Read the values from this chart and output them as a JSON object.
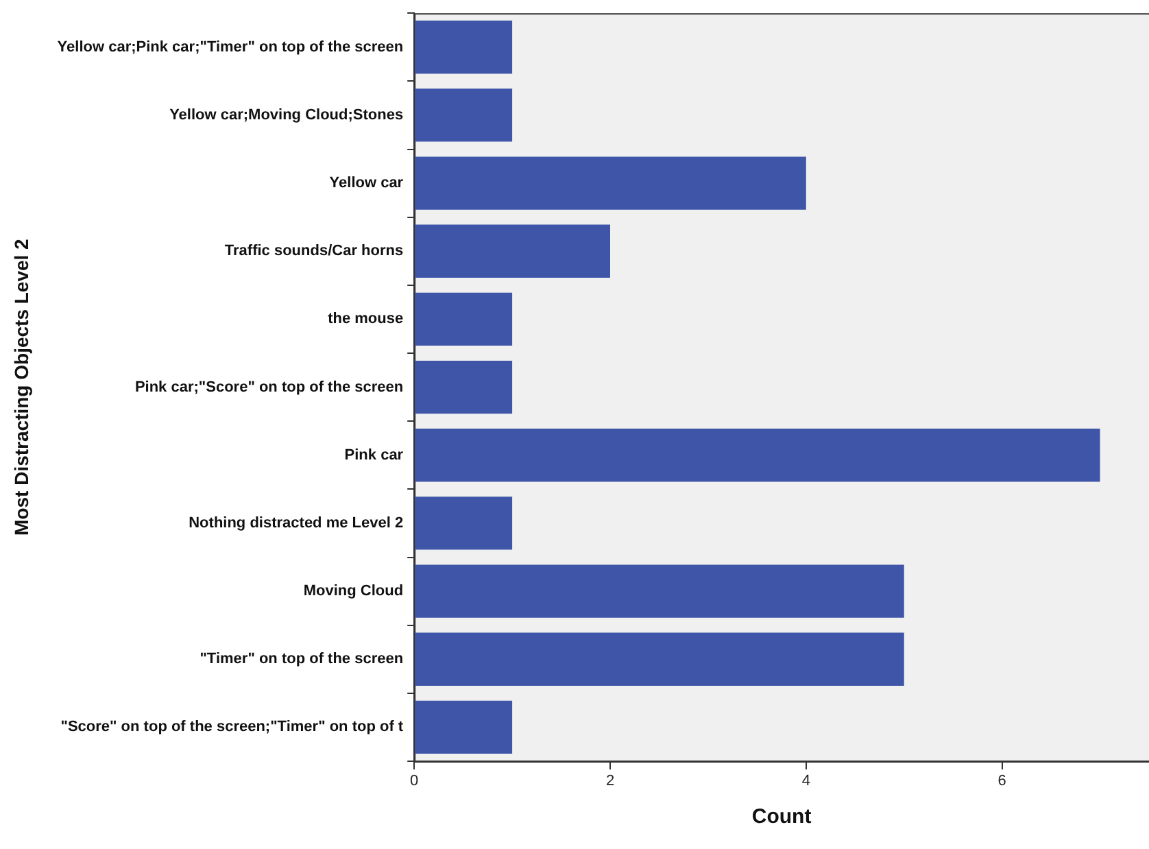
{
  "chart_data": {
    "type": "bar",
    "orientation": "horizontal",
    "xlabel": "Count",
    "ylabel": "Most Distracting Objects Level 2",
    "categories": [
      "Yellow car;Pink car;\"Timer\" on top of the screen",
      "Yellow car;Moving Cloud;Stones",
      "Yellow car",
      "Traffic sounds/Car horns",
      "the mouse",
      "Pink car;\"Score\" on top of the screen",
      "Pink car",
      "Nothing distracted me Level 2",
      "Moving Cloud",
      "\"Timer\" on top of the screen",
      "\"Score\" on top of the screen;\"Timer\" on top of t"
    ],
    "values": [
      1,
      1,
      4,
      2,
      1,
      1,
      7,
      1,
      5,
      5,
      1
    ],
    "color": "#3f56a8",
    "xlim": [
      0,
      7.5
    ],
    "xticks": [
      0,
      2,
      4,
      6
    ]
  }
}
